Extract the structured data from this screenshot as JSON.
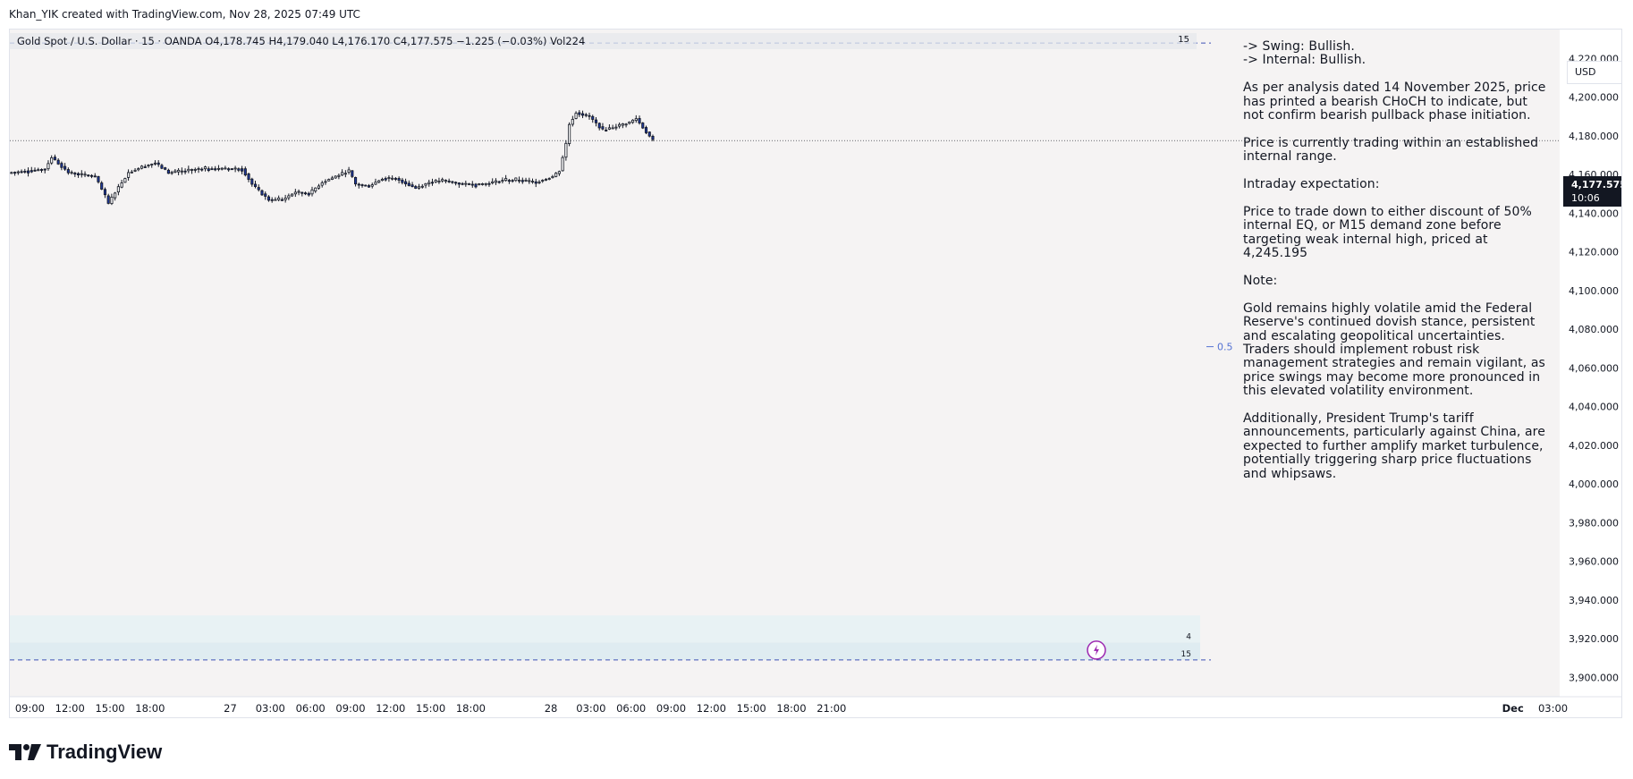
{
  "header": {
    "caption": "Khan_YIK created with TradingView.com, Nov 28, 2025 07:49 UTC"
  },
  "legend": {
    "text": "Gold Spot / U.S. Dollar · 15 · OANDA  O4,178.745  H4,179.040  L4,176.170  C4,177.575  −1.225 (−0.03%)  Vol224",
    "interval_badge": "15"
  },
  "annotation": "-> Swing: Bullish.\n-> Internal: Bullish.\n\nAs per analysis dated 14 November 2025, price has printed a bearish CHoCH to indicate, but not confirm bearish pullback phase initiation.\n\nPrice is currently trading within an established internal range.\n\nIntraday expectation:\n\nPrice to trade down to either discount of 50% internal EQ, or M15 demand zone before targeting weak internal high, priced at 4,245.195\n\nNote:\n\nGold remains highly volatile amid the Federal Reserve's continued dovish stance, persistent and escalating geopolitical uncertainties. Traders should implement robust risk management strategies and remain vigilant, as price swings may become more pronounced in this elevated volatility environment.\n\nAdditionally, President Trump's tariff announcements, particularly against China, are expected to further amplify market turbulence, potentially triggering sharp price fluctuations and whipsaws.",
  "price_scale": {
    "currency": "USD",
    "last_price": "4,177.575",
    "countdown": "10:06"
  },
  "footer": {
    "brand": "TradingView"
  },
  "colors": {
    "background": "#f5f3f3",
    "bull_candle": "#ffffff",
    "bear_candle": "#1e3799",
    "zone": "#e3eff2",
    "dashed_lines": "#3f51b5",
    "fib_label": "#5472d3"
  },
  "chart_data": {
    "type": "candlestick",
    "title": "Gold Spot / U.S. Dollar · 15 · OANDA",
    "ylim": [
      3890,
      4235
    ],
    "y_ticks": [
      4220,
      4200,
      4180,
      4160,
      4140,
      4120,
      4100,
      4080,
      4060,
      4040,
      4020,
      4000,
      3980,
      3960,
      3940,
      3920,
      3900
    ],
    "y_tick_labels": [
      "4,220.000",
      "4,200.000",
      "4,180.000",
      "4,160.000",
      "4,140.000",
      "4,120.000",
      "4,100.000",
      "4,080.000",
      "4,060.000",
      "4,040.000",
      "4,020.000",
      "4,000.000",
      "3,980.000",
      "3,960.000",
      "3,940.000",
      "3,920.000",
      "3,900.000"
    ],
    "x_start": "2025-11-26 07:30",
    "x_end": "2025-12-01 03:30",
    "x_ticks": [
      {
        "t": "2025-11-26 09:00",
        "label": "09:00",
        "bold": false
      },
      {
        "t": "2025-11-26 12:00",
        "label": "12:00",
        "bold": false
      },
      {
        "t": "2025-11-26 15:00",
        "label": "15:00",
        "bold": false
      },
      {
        "t": "2025-11-26 18:00",
        "label": "18:00",
        "bold": false
      },
      {
        "t": "2025-11-27 00:00",
        "label": "27",
        "bold": false
      },
      {
        "t": "2025-11-27 03:00",
        "label": "03:00",
        "bold": false
      },
      {
        "t": "2025-11-27 06:00",
        "label": "06:00",
        "bold": false
      },
      {
        "t": "2025-11-27 09:00",
        "label": "09:00",
        "bold": false
      },
      {
        "t": "2025-11-27 12:00",
        "label": "12:00",
        "bold": false
      },
      {
        "t": "2025-11-27 15:00",
        "label": "15:00",
        "bold": false
      },
      {
        "t": "2025-11-27 18:00",
        "label": "18:00",
        "bold": false
      },
      {
        "t": "2025-11-28 00:00",
        "label": "28",
        "bold": false
      },
      {
        "t": "2025-11-28 03:00",
        "label": "03:00",
        "bold": false
      },
      {
        "t": "2025-11-28 06:00",
        "label": "06:00",
        "bold": false
      },
      {
        "t": "2025-11-28 09:00",
        "label": "09:00",
        "bold": false
      },
      {
        "t": "2025-11-28 12:00",
        "label": "12:00",
        "bold": false
      },
      {
        "t": "2025-11-28 15:00",
        "label": "15:00",
        "bold": false
      },
      {
        "t": "2025-11-28 18:00",
        "label": "18:00",
        "bold": false
      },
      {
        "t": "2025-11-28 21:00",
        "label": "21:00",
        "bold": false
      },
      {
        "t": "2025-12-01 00:00",
        "label": "Dec",
        "bold": true
      },
      {
        "t": "2025-12-01 03:00",
        "label": "03:00",
        "bold": false
      }
    ],
    "last_close": 4177.575,
    "zones": [
      {
        "top": 3932,
        "bottom": 3918,
        "color": "#e8f2f4"
      },
      {
        "top": 3918,
        "bottom": 3909,
        "color": "#dfecf1"
      }
    ],
    "zone_labels": [
      "4",
      "15"
    ],
    "range_lines": {
      "top": 4228,
      "bottom": 3909,
      "label_top": "15",
      "color": "#3f51b5"
    },
    "fib_level": {
      "price": 4071,
      "label": "0.5"
    },
    "knots": [
      {
        "t": "2025-11-26 07:30",
        "p": 4161
      },
      {
        "t": "2025-11-26 10:15",
        "p": 4163
      },
      {
        "t": "2025-11-26 10:45",
        "p": 4169
      },
      {
        "t": "2025-11-26 12:00",
        "p": 4161
      },
      {
        "t": "2025-11-26 14:00",
        "p": 4159
      },
      {
        "t": "2025-11-26 14:45",
        "p": 4149
      },
      {
        "t": "2025-11-26 15:00",
        "p": 4145
      },
      {
        "t": "2025-11-26 15:30",
        "p": 4151
      },
      {
        "t": "2025-11-26 16:30",
        "p": 4161
      },
      {
        "t": "2025-11-26 17:30",
        "p": 4164
      },
      {
        "t": "2025-11-26 18:30",
        "p": 4166
      },
      {
        "t": "2025-11-26 19:30",
        "p": 4161
      },
      {
        "t": "2025-11-26 22:00",
        "p": 4163
      },
      {
        "t": "2025-11-27 01:00",
        "p": 4163
      },
      {
        "t": "2025-11-27 01:45",
        "p": 4155
      },
      {
        "t": "2025-11-27 02:30",
        "p": 4150
      },
      {
        "t": "2025-11-27 03:00",
        "p": 4147
      },
      {
        "t": "2025-11-27 04:00",
        "p": 4147
      },
      {
        "t": "2025-11-27 05:00",
        "p": 4151
      },
      {
        "t": "2025-11-27 06:00",
        "p": 4150
      },
      {
        "t": "2025-11-27 07:00",
        "p": 4156
      },
      {
        "t": "2025-11-27 08:00",
        "p": 4159
      },
      {
        "t": "2025-11-27 09:00",
        "p": 4162
      },
      {
        "t": "2025-11-27 09:30",
        "p": 4155
      },
      {
        "t": "2025-11-27 10:30",
        "p": 4154
      },
      {
        "t": "2025-11-27 11:30",
        "p": 4158
      },
      {
        "t": "2025-11-27 12:30",
        "p": 4158
      },
      {
        "t": "2025-11-27 14:00",
        "p": 4153
      },
      {
        "t": "2025-11-27 15:00",
        "p": 4156
      },
      {
        "t": "2025-11-27 16:00",
        "p": 4157
      },
      {
        "t": "2025-11-27 17:30",
        "p": 4155
      },
      {
        "t": "2025-11-27 19:00",
        "p": 4155
      },
      {
        "t": "2025-11-27 20:30",
        "p": 4157
      },
      {
        "t": "2025-11-27 22:00",
        "p": 4157
      },
      {
        "t": "2025-11-27 23:00",
        "p": 4156
      },
      {
        "t": "2025-11-28 00:15",
        "p": 4159
      },
      {
        "t": "2025-11-28 00:45",
        "p": 4162
      },
      {
        "t": "2025-11-28 01:15",
        "p": 4176
      },
      {
        "t": "2025-11-28 01:30",
        "p": 4186
      },
      {
        "t": "2025-11-28 02:00",
        "p": 4192
      },
      {
        "t": "2025-11-28 03:00",
        "p": 4190
      },
      {
        "t": "2025-11-28 04:00",
        "p": 4183
      },
      {
        "t": "2025-11-28 05:00",
        "p": 4185
      },
      {
        "t": "2025-11-28 06:00",
        "p": 4187
      },
      {
        "t": "2025-11-28 06:30",
        "p": 4189
      },
      {
        "t": "2025-11-28 07:15",
        "p": 4182
      },
      {
        "t": "2025-11-28 07:45",
        "p": 4177.575
      }
    ]
  }
}
